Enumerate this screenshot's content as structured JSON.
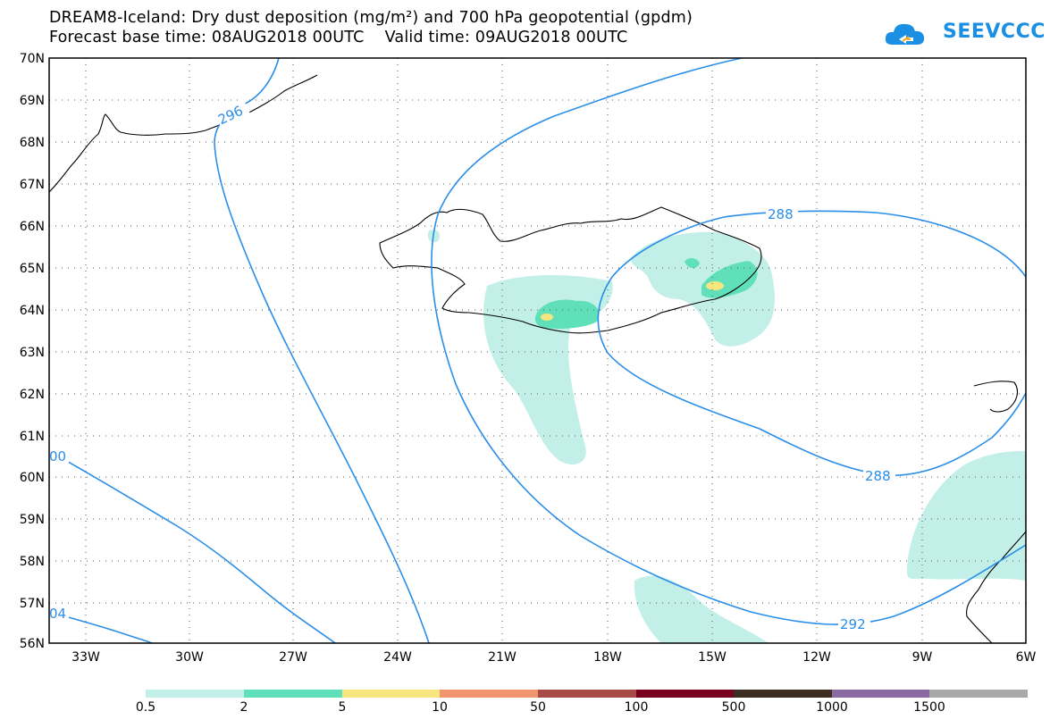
{
  "header": {
    "title_line1": "DREAM8-Iceland: Dry dust deposition (mg/m²) and 700 hPa geopotential (gpdm)",
    "title_line2": "Forecast base time: 08AUG2018 00UTC    Valid time: 09AUG2018 00UTC",
    "logo_text": "SEEVCCC"
  },
  "map": {
    "lat_labels": [
      "70N",
      "69N",
      "68N",
      "67N",
      "66N",
      "65N",
      "64N",
      "63N",
      "62N",
      "61N",
      "60N",
      "59N",
      "58N",
      "57N",
      "56N"
    ],
    "lon_labels": [
      "33W",
      "30W",
      "27W",
      "24W",
      "21W",
      "18W",
      "15W",
      "12W",
      "9W",
      "6W"
    ],
    "contour_labels": [
      "296",
      "288",
      "288",
      "292",
      "00",
      "04"
    ],
    "colors": {
      "contour": "#2a8ee8",
      "coast": "#000000"
    }
  },
  "legend": {
    "labels": [
      "0.5",
      "2",
      "5",
      "10",
      "50",
      "100",
      "500",
      "1000",
      "1500"
    ],
    "colors": [
      "#c2f0e8",
      "#5fe0b8",
      "#f7e57e",
      "#f0956e",
      "#a64b45",
      "#7a0020",
      "#3d2c20",
      "#8b6aa3",
      "#a8a8a8"
    ]
  }
}
